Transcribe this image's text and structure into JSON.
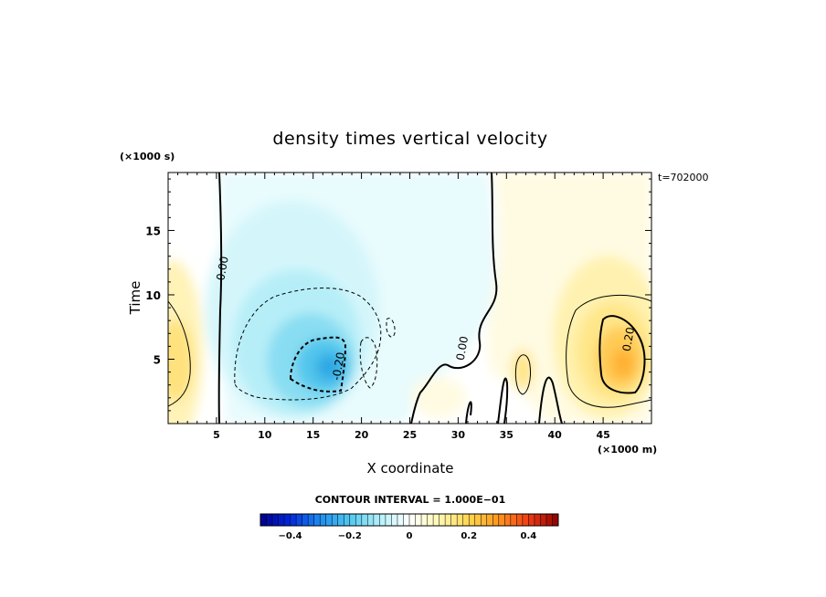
{
  "chart_data": {
    "type": "heatmap",
    "title": "density times vertical velocity",
    "xlabel": "X coordinate",
    "ylabel": "Time",
    "x_units_label": "(×1000 m)",
    "y_units_label": "(×1000 s)",
    "time_stamp": "t=702000",
    "xlim": [
      0,
      50
    ],
    "ylim": [
      0,
      19.5
    ],
    "x_ticks": [
      5,
      10,
      15,
      20,
      25,
      30,
      35,
      40,
      45
    ],
    "x_tick_labels": [
      "5",
      "10",
      "15",
      "20",
      "25",
      "30",
      "35",
      "40",
      "45"
    ],
    "y_ticks": [
      5,
      10,
      15
    ],
    "y_tick_labels": [
      "5",
      "10",
      "15"
    ],
    "contour_interval_label": "CONTOUR INTERVAL = 1.000E−01",
    "contour_labels": [
      {
        "text": "0.00",
        "x": 6.0,
        "y": 12.0
      },
      {
        "text": "-0.20",
        "x": 18.0,
        "y": 4.4
      },
      {
        "text": "0.00",
        "x": 30.8,
        "y": 5.8
      },
      {
        "text": "0.20",
        "x": 48.0,
        "y": 6.5
      }
    ],
    "colorbar": {
      "min": -0.5,
      "max": 0.5,
      "tick_values": [
        -0.4,
        -0.2,
        0,
        0.2,
        0.4
      ],
      "tick_labels": [
        "−0.4",
        "−0.2",
        "0",
        "0.2",
        "0.4"
      ]
    },
    "features": [
      {
        "kind": "negative",
        "x": 16.5,
        "y": 4.8,
        "peak": -0.35
      },
      {
        "kind": "negative",
        "x": 20.0,
        "y": 12.0,
        "peak": -0.1
      },
      {
        "kind": "positive",
        "x": 47.0,
        "y": 5.0,
        "peak": 0.27
      },
      {
        "kind": "positive",
        "x": 1.0,
        "y": 5.0,
        "peak": 0.14
      },
      {
        "kind": "positive",
        "x": 36.5,
        "y": 4.2,
        "peak": 0.13
      }
    ]
  }
}
